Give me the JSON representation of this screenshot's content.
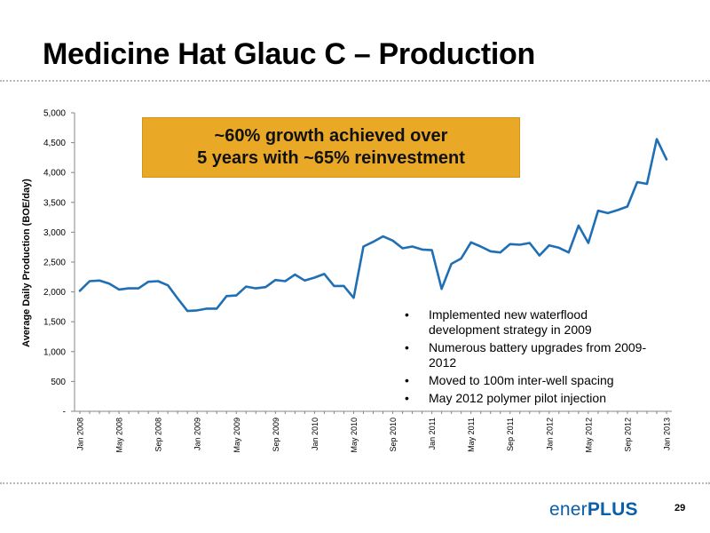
{
  "slide": {
    "title": "Medicine Hat Glauc C – Production",
    "page_number": "29",
    "logo": {
      "prefix": "ener",
      "suffix": "PLUS"
    }
  },
  "callout": {
    "line1": "~60% growth achieved over",
    "line2": "5 years with ~65% reinvestment",
    "background": "#e9a927"
  },
  "bullets": [
    "Implemented new waterflood development strategy in 2009",
    "Numerous battery upgrades from 2009-2012",
    "Moved to 100m inter-well spacing",
    "May 2012 polymer pilot injection"
  ],
  "chart_data": {
    "type": "line",
    "ylabel": "Average Daily Production (BOE/day)",
    "xlabel": "",
    "ylim": [
      0,
      5000
    ],
    "yticks": [
      0,
      500,
      1000,
      1500,
      2000,
      2500,
      3000,
      3500,
      4000,
      4500,
      5000
    ],
    "ytick_labels": [
      "-",
      "500",
      "1,000",
      "1,500",
      "2,000",
      "2,500",
      "3,000",
      "3,500",
      "4,000",
      "4,500",
      "5,000"
    ],
    "xtick_labels": [
      "Jan 2008",
      "May 2008",
      "Sep 2008",
      "Jan 2009",
      "May 2009",
      "Sep 2009",
      "Jan 2010",
      "May 2010",
      "Sep 2010",
      "Jan 2011",
      "May 2011",
      "Sep 2011",
      "Jan 2012",
      "May 2012",
      "Sep 2012",
      "Jan 2013"
    ],
    "grid": false,
    "line_color": "#1f6fb5",
    "series": [
      {
        "values": [
          2020,
          2180,
          2190,
          2140,
          2040,
          2060,
          2060,
          2170,
          2180,
          2110,
          1890,
          1680,
          1690,
          1720,
          1720,
          1930,
          1940,
          2090,
          2060,
          2080,
          2200,
          2180,
          2290,
          2190,
          2240,
          2300,
          2100,
          2100,
          1900,
          2760,
          2840,
          2930,
          2860,
          2730,
          2760,
          2710,
          2700,
          2050,
          2470,
          2560,
          2830,
          2760,
          2680,
          2660,
          2800,
          2790,
          2820,
          2610,
          2780,
          2740,
          2660,
          3110,
          2820,
          3360,
          3320,
          3370,
          3430,
          3840,
          3810,
          4560,
          4220
        ]
      }
    ]
  }
}
